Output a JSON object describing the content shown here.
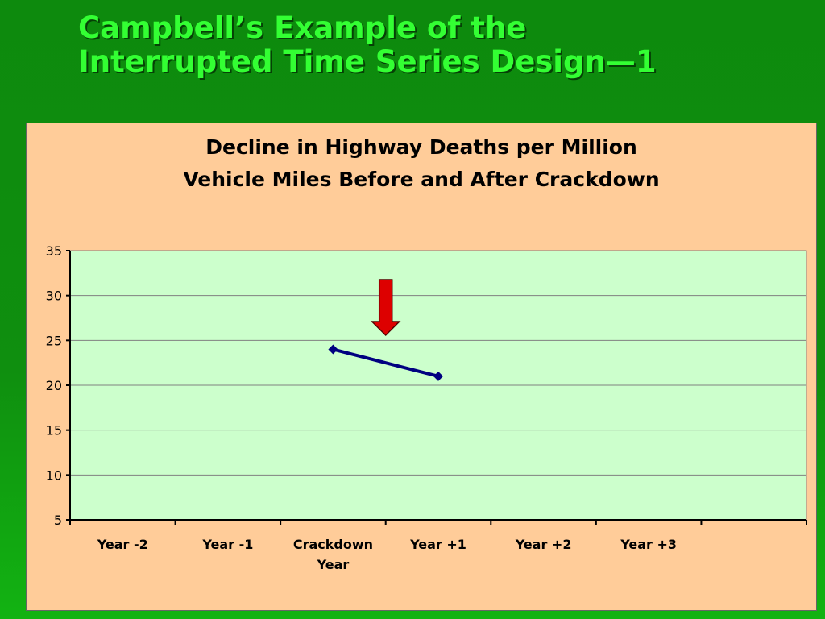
{
  "slide": {
    "title_line1": "Campbell’s Example of the",
    "title_line2": "Interrupted Time Series Design—1"
  },
  "colors": {
    "background": "#0f8f0f",
    "title": "#33ff33",
    "panel": "#ffcc99",
    "plot_area": "#ccffcc",
    "series_line": "#000080",
    "arrow": "#dd0000"
  },
  "chart_data": {
    "type": "line",
    "title_line1": "Decline in Highway Deaths per Million",
    "title_line2": "Vehicle Miles Before and After Crackdown",
    "categories": [
      [
        "Year -2"
      ],
      [
        "Year -1"
      ],
      [
        "Crackdown",
        "Year"
      ],
      [
        "Year +1"
      ],
      [
        "Year +2"
      ],
      [
        "Year +3"
      ],
      [
        ""
      ]
    ],
    "series": [
      {
        "values": [
          null,
          null,
          24,
          21,
          null,
          null,
          null
        ]
      }
    ],
    "ylim": [
      5,
      35
    ],
    "yticks": [
      5,
      10,
      15,
      20,
      25,
      30,
      35
    ],
    "grid": true,
    "legend": "none",
    "annotation": {
      "type": "down-arrow",
      "between_categories": [
        "Crackdown Year",
        "Year +1"
      ]
    }
  }
}
